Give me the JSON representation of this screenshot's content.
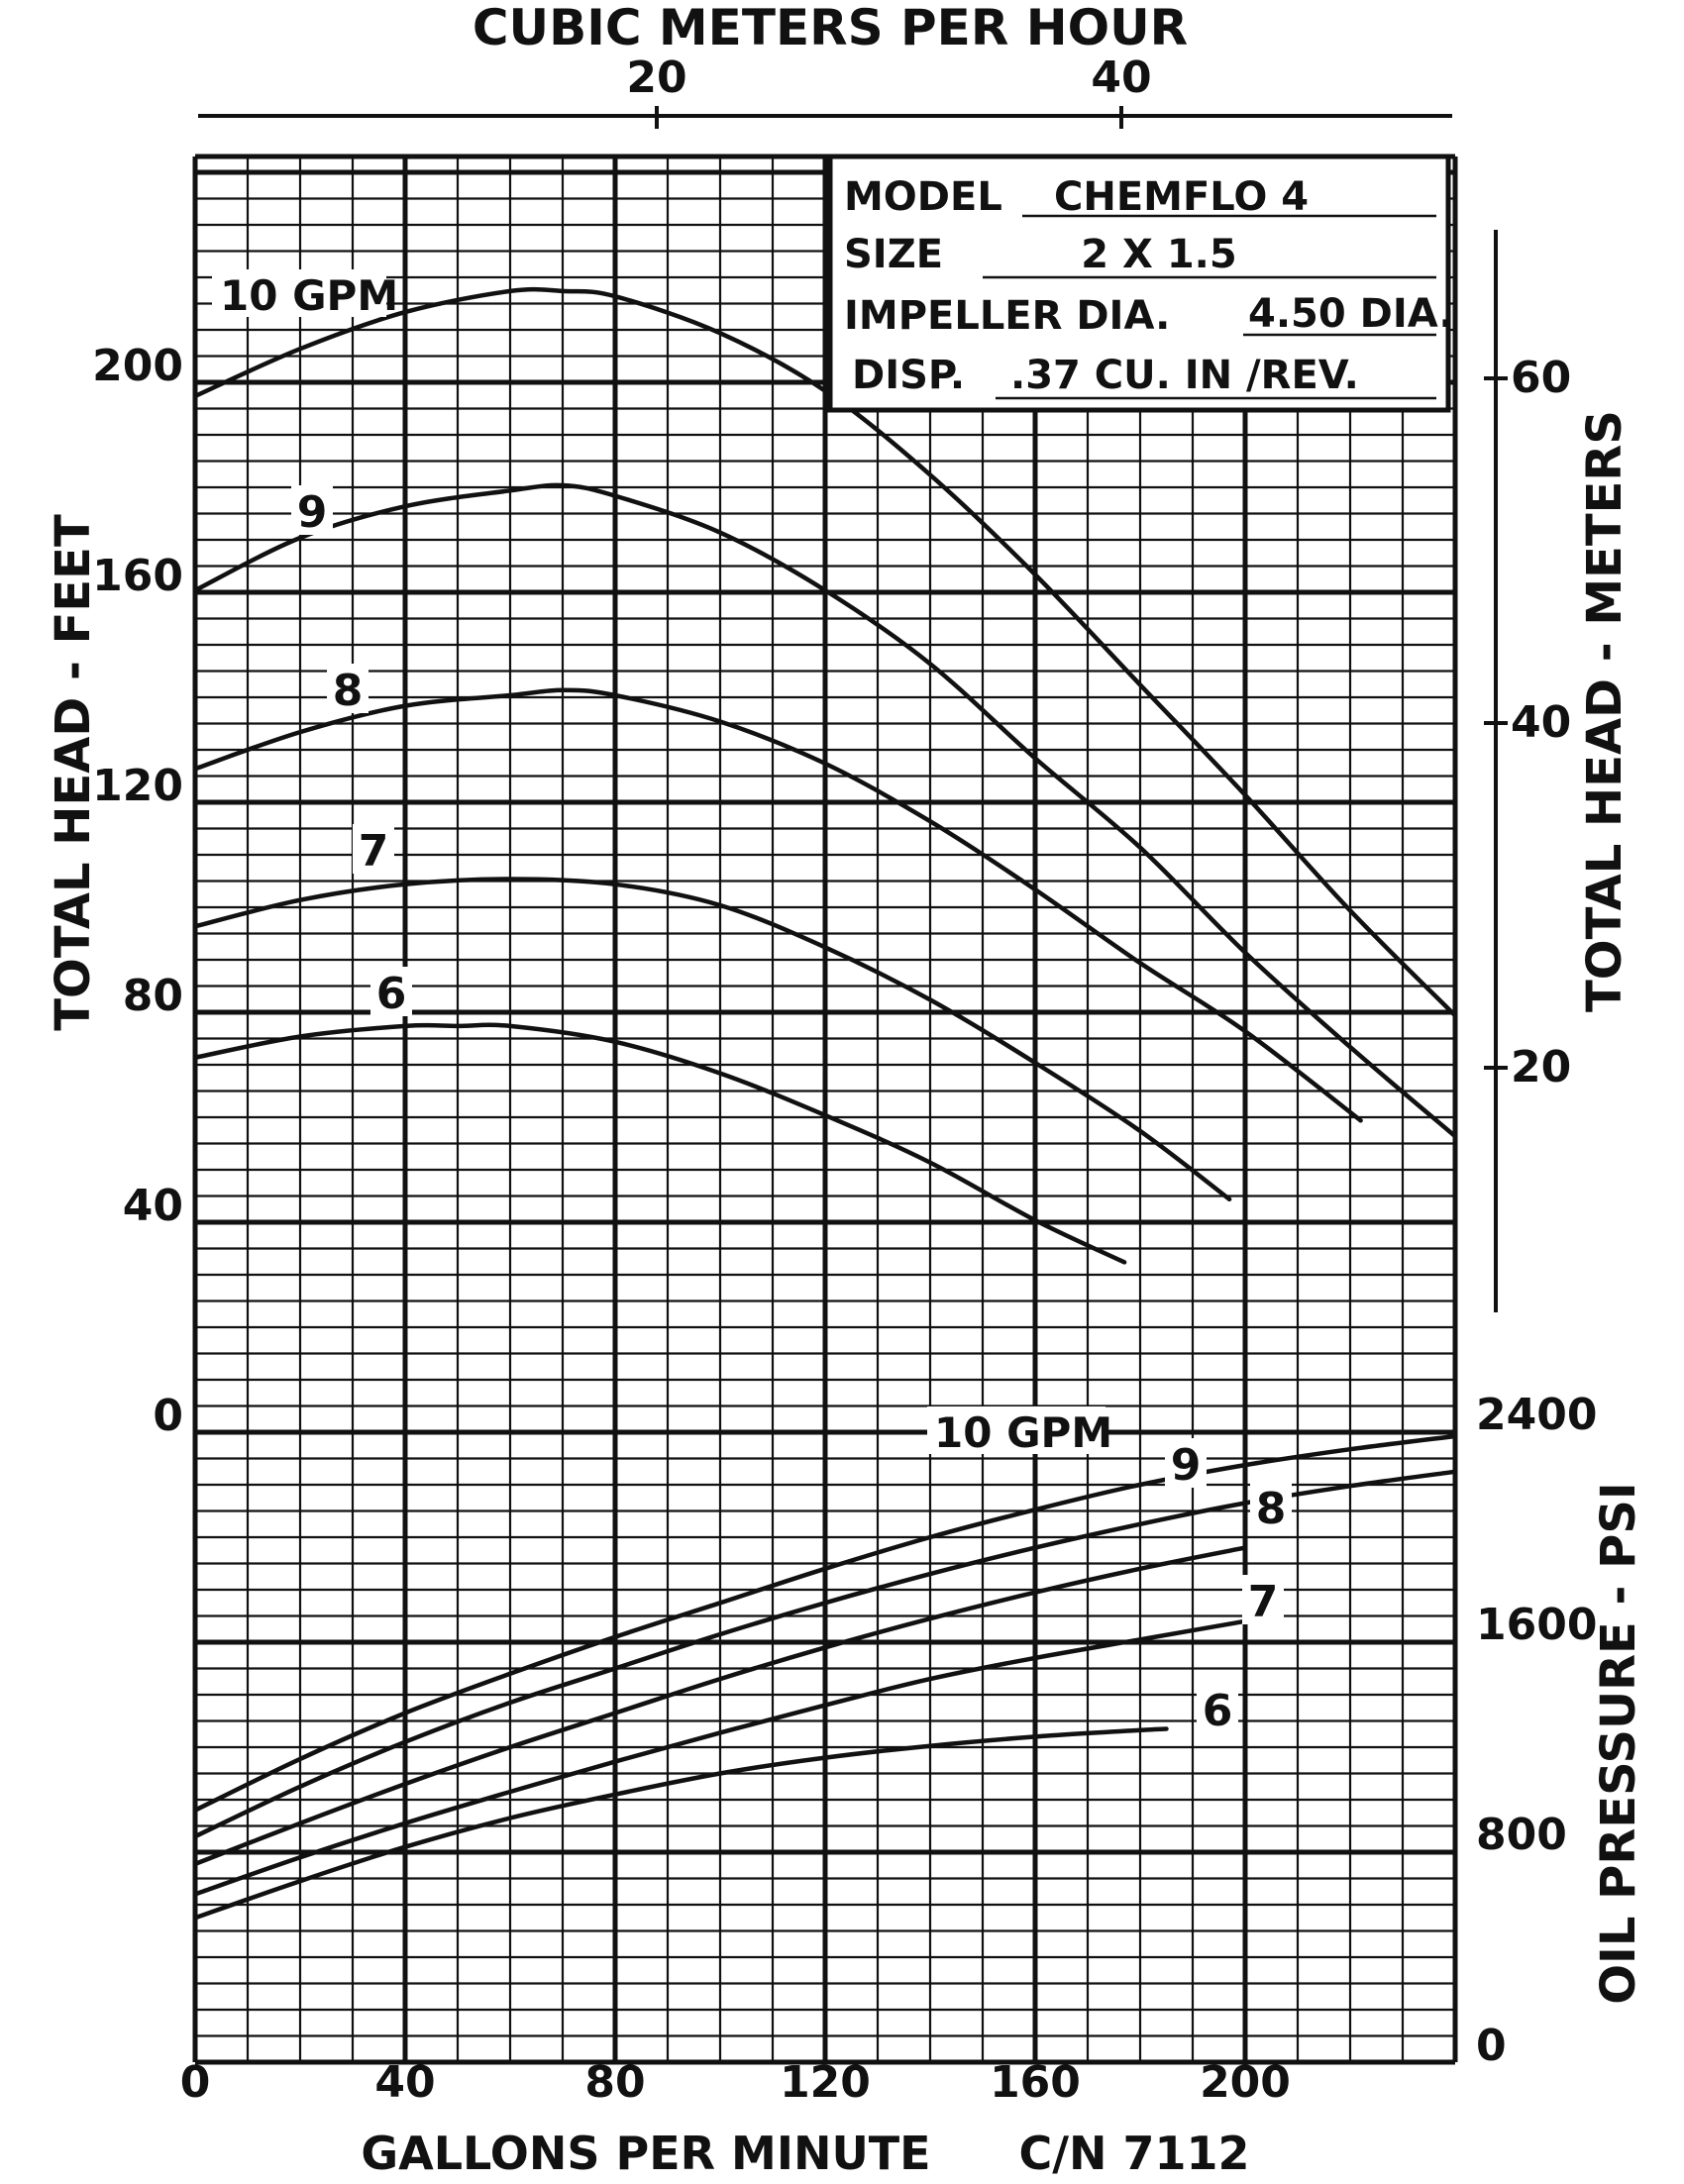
{
  "chart_data": {
    "type": "line",
    "title": "",
    "top_axis": {
      "label": "CUBIC METERS PER HOUR",
      "ticks": [
        "20",
        "40"
      ],
      "tick_values": [
        20,
        40
      ]
    },
    "x_axis": {
      "label": "GALLONS PER MINUTE",
      "ticks": [
        "0",
        "40",
        "80",
        "120",
        "160",
        "200"
      ],
      "tick_values": [
        0,
        40,
        80,
        120,
        160,
        200
      ],
      "range": [
        0,
        240
      ]
    },
    "left_axis": {
      "label": "TOTAL HEAD - FEET",
      "ticks": [
        "0",
        "40",
        "80",
        "120",
        "160",
        "200"
      ],
      "tick_values": [
        0,
        40,
        80,
        120,
        160,
        200
      ],
      "range": [
        0,
        240
      ]
    },
    "right_head_axis": {
      "label": "TOTAL HEAD - METERS",
      "ticks": [
        "20",
        "40",
        "60"
      ],
      "tick_values": [
        20,
        40,
        60
      ]
    },
    "right_psi_axis": {
      "label": "OIL PRESSURE - PSI",
      "ticks": [
        "0",
        "800",
        "1600",
        "2400"
      ],
      "tick_values": [
        0,
        800,
        1600,
        2400
      ],
      "range": [
        0,
        2400
      ]
    },
    "grid": true,
    "catalog_number": "C/N 7112",
    "info_box": {
      "model_label": "MODEL",
      "model_value": "CHEMFLO 4",
      "size_label": "SIZE",
      "size_value": "2 X 1.5",
      "impeller_label": "IMPELLER DIA.",
      "impeller_value": "4.50 DIA.",
      "disp_label": "DISP.",
      "disp_value": ".37 CU. IN /REV."
    },
    "head_series": [
      {
        "name": "10 GPM",
        "gpm": [
          0,
          20,
          40,
          60,
          70,
          80,
          100,
          120,
          140,
          160,
          180,
          200,
          220,
          240
        ],
        "head_ft": [
          197,
          206,
          213,
          217,
          217,
          216,
          209,
          198,
          182,
          163,
          142,
          121,
          99,
          79
        ]
      },
      {
        "name": "9",
        "gpm": [
          0,
          20,
          40,
          60,
          70,
          80,
          100,
          120,
          140,
          160,
          180,
          200,
          220,
          240
        ],
        "head_ft": [
          160,
          170,
          176,
          179,
          180,
          178,
          171,
          160,
          146,
          128,
          111,
          91,
          73,
          56
        ]
      },
      {
        "name": "8",
        "gpm": [
          0,
          20,
          40,
          60,
          70,
          80,
          100,
          120,
          140,
          160,
          180,
          200,
          222
        ],
        "head_ft": [
          126,
          133,
          138,
          140,
          141,
          140,
          135,
          127,
          116,
          103,
          89,
          76,
          59
        ]
      },
      {
        "name": "7",
        "gpm": [
          0,
          20,
          40,
          60,
          80,
          100,
          120,
          140,
          160,
          180,
          197
        ],
        "head_ft": [
          96,
          101,
          104,
          105,
          104,
          100,
          92,
          82,
          70,
          57,
          44
        ]
      },
      {
        "name": "6",
        "gpm": [
          0,
          20,
          40,
          50,
          60,
          80,
          100,
          120,
          140,
          160,
          177
        ],
        "head_ft": [
          71,
          75,
          77,
          77,
          77,
          74,
          68,
          60,
          51,
          40,
          32
        ]
      }
    ],
    "pressure_series": [
      {
        "name": "10 GPM",
        "gpm": [
          0,
          20,
          40,
          60,
          80,
          100,
          120,
          140,
          160,
          180,
          200,
          220,
          240
        ],
        "psi": [
          960,
          1155,
          1330,
          1480,
          1620,
          1750,
          1880,
          2000,
          2105,
          2200,
          2275,
          2335,
          2385
        ]
      },
      {
        "name": "9",
        "gpm": [
          0,
          20,
          40,
          60,
          80,
          100,
          120,
          140,
          160,
          180,
          200,
          220,
          240
        ],
        "psi": [
          860,
          1050,
          1220,
          1370,
          1500,
          1630,
          1750,
          1860,
          1960,
          2050,
          2130,
          2195,
          2250
        ]
      },
      {
        "name": "8",
        "gpm": [
          0,
          20,
          40,
          60,
          80,
          100,
          120,
          140,
          160,
          180,
          200
        ],
        "psi": [
          755,
          910,
          1060,
          1200,
          1330,
          1460,
          1580,
          1690,
          1790,
          1880,
          1960
        ]
      },
      {
        "name": "7",
        "gpm": [
          0,
          20,
          40,
          60,
          80,
          100,
          120,
          140,
          160,
          180,
          200
        ],
        "psi": [
          640,
          780,
          910,
          1030,
          1145,
          1255,
          1360,
          1460,
          1540,
          1610,
          1680
        ]
      },
      {
        "name": "6",
        "gpm": [
          0,
          20,
          40,
          60,
          80,
          100,
          120,
          140,
          160,
          180,
          185
        ],
        "psi": [
          550,
          690,
          820,
          930,
          1020,
          1100,
          1160,
          1205,
          1240,
          1265,
          1270
        ]
      }
    ]
  }
}
